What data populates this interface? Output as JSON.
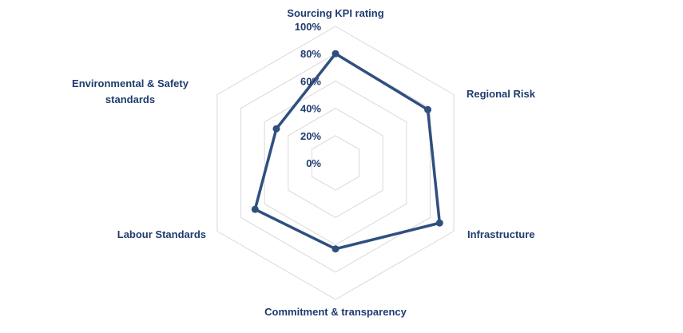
{
  "chart_data": {
    "type": "radar",
    "categories": [
      "Sourcing KPI rating",
      "Regional Risk",
      "Infrastructure",
      "Commitment & transparency",
      "Labour Standards",
      "Environmental & Safety standards"
    ],
    "category_label_lines": [
      [
        "Sourcing KPI rating"
      ],
      [
        "Regional Risk"
      ],
      [
        "Infrastructure"
      ],
      [
        "Commitment & transparency"
      ],
      [
        "Labour Standards"
      ],
      [
        "Environmental & Safety",
        "standards"
      ]
    ],
    "values": [
      0.8,
      0.78,
      0.88,
      0.63,
      0.68,
      0.5
    ],
    "rlim": [
      0,
      1
    ],
    "tick_labels": [
      "0%",
      "20%",
      "40%",
      "60%",
      "80%",
      "100%"
    ],
    "ticks": [
      0,
      0.2,
      0.4,
      0.6,
      0.8,
      1.0
    ],
    "grid": true,
    "legend": "none",
    "colors": {
      "series": "#2f4f7f",
      "text": "#1f3b6e",
      "grid": "#d9d9d9"
    }
  }
}
